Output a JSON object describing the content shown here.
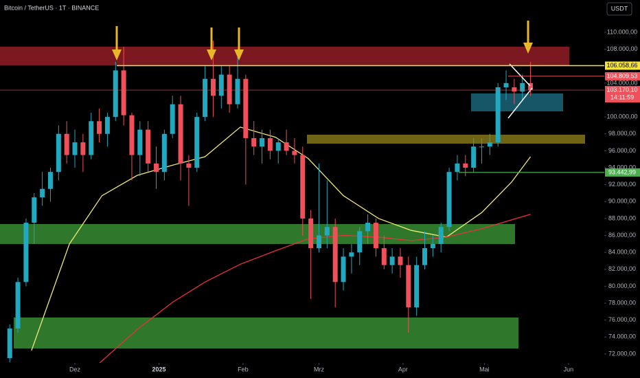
{
  "header": {
    "title": "Bitcoin / TetherUS · 1T · BINANCE",
    "currency": "USDT"
  },
  "chart_data": {
    "type": "candlestick",
    "x": [
      -24,
      -21,
      -18,
      -15,
      -12,
      -9,
      -6,
      -3,
      0,
      3,
      6,
      9,
      12,
      15,
      18,
      21,
      24,
      27,
      30,
      33,
      36,
      39,
      42,
      45,
      48,
      51,
      54,
      57,
      60,
      63,
      66,
      69,
      72,
      75,
      78,
      81,
      84,
      87,
      90,
      93,
      96,
      99,
      102,
      105,
      108,
      111,
      114,
      117,
      120,
      123,
      126,
      129,
      132,
      135,
      138,
      141,
      144,
      147,
      150,
      153,
      156,
      159,
      162,
      165,
      168
    ],
    "open": [
      71500,
      75000,
      80500,
      87500,
      90500,
      91500,
      93500,
      98000,
      95500,
      97000,
      95500,
      99500,
      98000,
      100000,
      105500,
      100200,
      95500,
      98500,
      94500,
      93500,
      98000,
      101500,
      94500,
      94000,
      100000,
      104500,
      102500,
      105000,
      101500,
      104500,
      97500,
      96500,
      97500,
      96000,
      97000,
      96000,
      95500,
      88000,
      84500,
      86000,
      87000,
      80500,
      83500,
      84000,
      86500,
      87500,
      84500,
      82500,
      83500,
      82500,
      77500,
      82500,
      84500,
      85000,
      87000,
      93500,
      94500,
      94000,
      96500,
      96500,
      97000,
      103500,
      103500,
      103000,
      104000
    ],
    "high": [
      75500,
      81000,
      88000,
      91000,
      93500,
      94000,
      99000,
      99500,
      98500,
      98000,
      100500,
      101000,
      100500,
      106500,
      108300,
      100500,
      99500,
      99500,
      96500,
      98500,
      102500,
      102500,
      95500,
      100500,
      106000,
      109000,
      106000,
      106000,
      108000,
      105000,
      99500,
      98500,
      98500,
      97500,
      98500,
      97500,
      96500,
      89000,
      94500,
      92500,
      88000,
      84500,
      85000,
      87000,
      88500,
      88000,
      86000,
      84500,
      84500,
      83500,
      83500,
      86500,
      86000,
      87500,
      94000,
      95500,
      95500,
      97500,
      97500,
      98000,
      104000,
      105500,
      104500,
      105000,
      106500
    ],
    "low": [
      71000,
      74500,
      80000,
      85000,
      89500,
      90000,
      92500,
      94500,
      94000,
      93500,
      95000,
      97000,
      96500,
      99500,
      99000,
      92500,
      93000,
      93500,
      91500,
      92500,
      97500,
      92500,
      89500,
      93500,
      99500,
      100000,
      101000,
      100500,
      101000,
      92000,
      95500,
      94500,
      95000,
      94500,
      95500,
      94500,
      86000,
      78500,
      84000,
      84500,
      77500,
      79500,
      81500,
      82500,
      85000,
      83500,
      82000,
      81500,
      81000,
      74500,
      76500,
      82000,
      83500,
      84000,
      86500,
      92500,
      93000,
      93500,
      94500,
      95500,
      96500,
      102000,
      101500,
      102000,
      102500
    ],
    "close": [
      75000,
      80500,
      87500,
      90500,
      91500,
      93500,
      98000,
      95500,
      97000,
      95500,
      99500,
      98000,
      100000,
      105500,
      100200,
      95500,
      98500,
      94500,
      93500,
      98000,
      101500,
      94500,
      94000,
      100000,
      104500,
      102500,
      105000,
      101500,
      104500,
      97500,
      96500,
      97500,
      96000,
      97000,
      96000,
      95500,
      88000,
      84500,
      86000,
      87000,
      80500,
      83500,
      84000,
      86500,
      87500,
      84500,
      82500,
      83500,
      82500,
      77500,
      82500,
      84500,
      85000,
      87000,
      93500,
      94500,
      94000,
      96500,
      96500,
      97000,
      103500,
      104000,
      103000,
      104000,
      103170.1
    ],
    "up_color": "#22a8bf",
    "down_color": "#f0505a",
    "xlim": [
      -27.6,
      195.2
    ],
    "xticks": [
      {
        "value": 0,
        "label": "Dez"
      },
      {
        "value": 31,
        "label": "2025"
      },
      {
        "value": 62,
        "label": "Feb"
      },
      {
        "value": 90,
        "label": "Mrz"
      },
      {
        "value": 121,
        "label": "Apr"
      },
      {
        "value": 151,
        "label": "Mai"
      },
      {
        "value": 182,
        "label": "Jun"
      }
    ],
    "ylim": [
      70945,
      113815
    ],
    "yticks": [
      {
        "value": 110000,
        "label": "110.000,00"
      },
      {
        "value": 108000,
        "label": "108.000,00"
      },
      {
        "value": 104000,
        "label": "104.000,00"
      },
      {
        "value": 100000,
        "label": "100.000,00"
      },
      {
        "value": 98000,
        "label": "98.000,00"
      },
      {
        "value": 96000,
        "label": "96.000,00"
      },
      {
        "value": 94000,
        "label": "94.000,00"
      },
      {
        "value": 92000,
        "label": "92.000,00"
      },
      {
        "value": 90000,
        "label": "90.000,00"
      },
      {
        "value": 88000,
        "label": "88.000,00"
      },
      {
        "value": 86000,
        "label": "86.000,00"
      },
      {
        "value": 84000,
        "label": "84.000,00"
      },
      {
        "value": 82000,
        "label": "82.000,00"
      },
      {
        "value": 80000,
        "label": "80.000,00"
      },
      {
        "value": 78000,
        "label": "78.000,00"
      },
      {
        "value": 76000,
        "label": "76.000,00"
      },
      {
        "value": 74000,
        "label": "74.000,00"
      },
      {
        "value": 72000,
        "label": "72.000,00"
      }
    ],
    "lines": [
      {
        "color": "#f2ea7a",
        "x": [
          -16,
          -2,
          10,
          23,
          36,
          48,
          61,
          74,
          86,
          99,
          112,
          124,
          137,
          150,
          161,
          168
        ],
        "values": [
          72400,
          85000,
          90700,
          93100,
          94300,
          95300,
          98800,
          97600,
          95100,
          90700,
          88000,
          86600,
          85800,
          88700,
          92300,
          95300
        ]
      },
      {
        "color": "#e8323c",
        "x": [
          9,
          23,
          36,
          48,
          61,
          74,
          86,
          99,
          112,
          124,
          137,
          150,
          168
        ],
        "values": [
          70900,
          74900,
          78100,
          80500,
          82600,
          84200,
          85600,
          86000,
          85800,
          85400,
          85800,
          86800,
          88500
        ]
      }
    ],
    "levels": [
      {
        "value": 106058.66,
        "label": "106.058,66",
        "color": "#f5e342"
      },
      {
        "value": 104809.53,
        "label": "104.809,53",
        "color": "#f0505a"
      },
      {
        "value": 103170.1,
        "label": "103.170,10",
        "color": "#f0505a",
        "countdown": "14:11:59"
      },
      {
        "value": 93442.99,
        "label": "93.442,99",
        "color": "#4caf50"
      }
    ]
  }
}
